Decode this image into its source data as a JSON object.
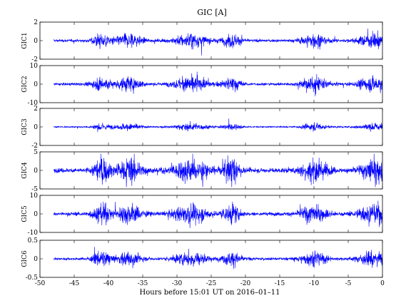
{
  "chart_data": {
    "type": "line",
    "title": "GIC [A]",
    "xlabel": "Hours before  15:01 UT on 2016–01–11",
    "xlim": [
      -50,
      0
    ],
    "xticks": [
      "-50",
      "-45",
      "-40",
      "-35",
      "-30",
      "-25",
      "-20",
      "-15",
      "-10",
      "-5",
      "0"
    ],
    "line_color": "#0000ff",
    "grid": false,
    "data_start_hour": -48,
    "active_periods_hours": [
      -41,
      -37,
      -28,
      -22,
      -10,
      -1
    ],
    "panels": [
      {
        "ylabel": "GIC1",
        "ylim": [
          -2,
          2
        ],
        "yticks": [
          "2",
          "0",
          "-2"
        ],
        "approx_quiet_amplitude": 0.12,
        "approx_peak": 1.8
      },
      {
        "ylabel": "GIC2",
        "ylim": [
          -10,
          10
        ],
        "yticks": [
          "10",
          "0",
          "-10"
        ],
        "approx_quiet_amplitude": 0.6,
        "approx_peak": 9.5
      },
      {
        "ylabel": "GIC3",
        "ylim": [
          -2,
          2
        ],
        "yticks": [
          "2",
          "0",
          "-2"
        ],
        "approx_quiet_amplitude": 0.06,
        "approx_peak": 0.9
      },
      {
        "ylabel": "GIC4",
        "ylim": [
          -5,
          5
        ],
        "yticks": [
          "5",
          "0",
          "-5"
        ],
        "approx_quiet_amplitude": 0.5,
        "approx_peak": 4.5
      },
      {
        "ylabel": "GIC5",
        "ylim": [
          -10,
          10
        ],
        "yticks": [
          "10",
          "0",
          "-10"
        ],
        "approx_quiet_amplitude": 0.8,
        "approx_peak": 8.5
      },
      {
        "ylabel": "GIC6",
        "ylim": [
          -0.5,
          0.5
        ],
        "yticks": [
          "0.5",
          "0",
          "-0.5"
        ],
        "approx_quiet_amplitude": 0.03,
        "approx_peak": 0.35
      }
    ]
  }
}
